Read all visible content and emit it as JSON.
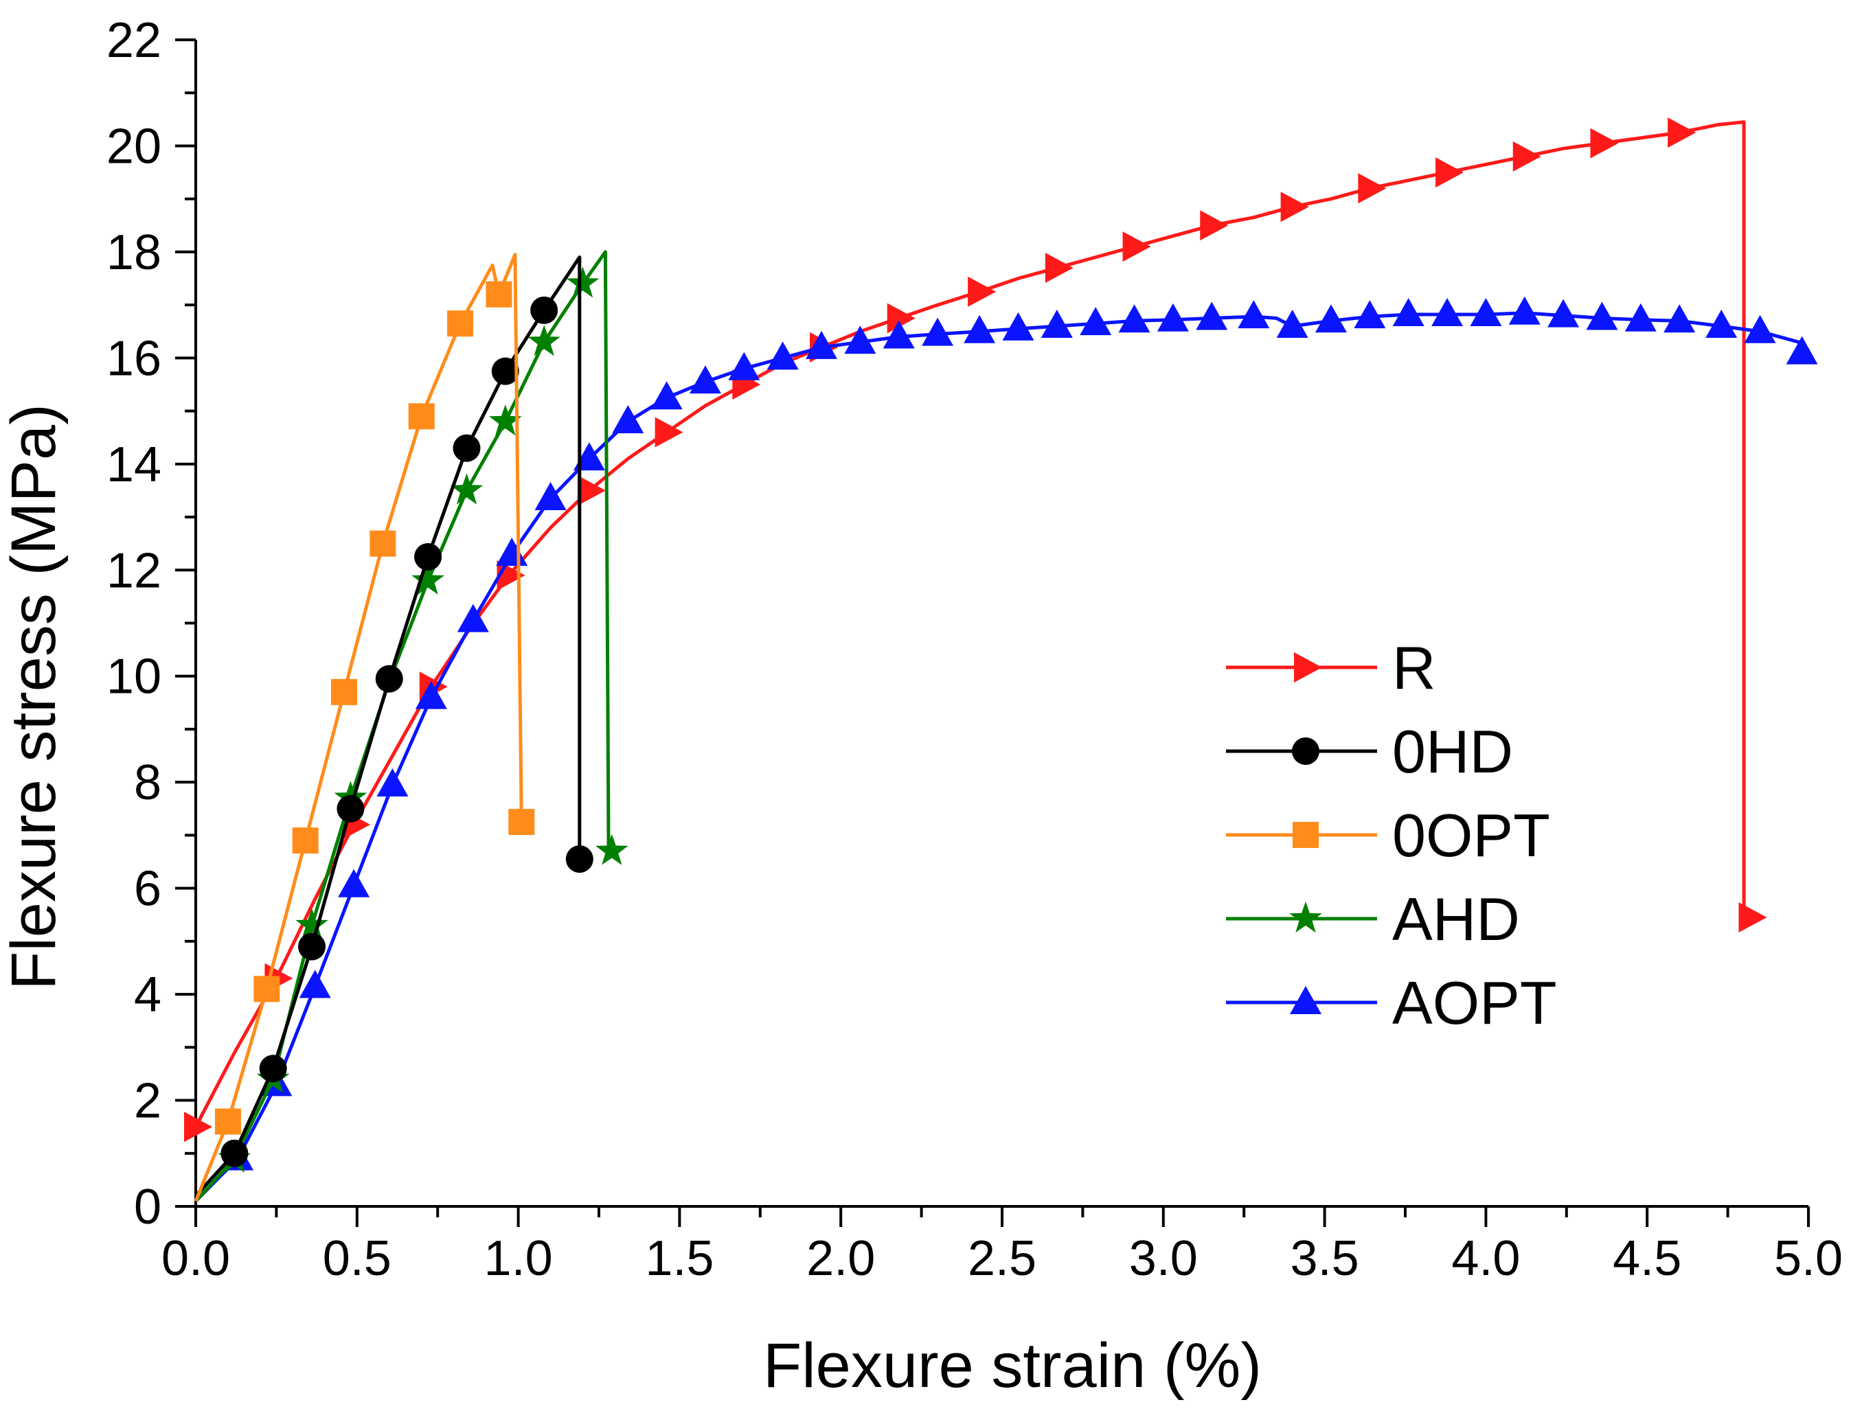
{
  "chart_data": {
    "type": "line",
    "title": "",
    "xlabel": "Flexure strain (%)",
    "ylabel": "Flexure stress (MPa)",
    "xlim": [
      0,
      5
    ],
    "ylim": [
      0,
      22
    ],
    "xticks": [
      "0.0",
      "0.5",
      "1.0",
      "1.5",
      "2.0",
      "2.5",
      "3.0",
      "3.5",
      "4.0",
      "4.5",
      "5.0"
    ],
    "yticks": [
      "0",
      "2",
      "4",
      "6",
      "8",
      "10",
      "12",
      "14",
      "16",
      "18",
      "20",
      "22"
    ],
    "legend_position": "center-right",
    "series": [
      {
        "name": "R",
        "color": "#ff1a1a",
        "marker": "triangle-right",
        "points": [
          [
            0.0,
            1.5
          ],
          [
            0.12,
            2.9
          ],
          [
            0.25,
            4.3
          ],
          [
            0.37,
            5.8
          ],
          [
            0.49,
            7.2
          ],
          [
            0.61,
            8.5
          ],
          [
            0.73,
            9.8
          ],
          [
            0.85,
            10.9
          ],
          [
            0.97,
            11.9
          ],
          [
            1.1,
            12.8
          ],
          [
            1.22,
            13.5
          ],
          [
            1.34,
            14.1
          ],
          [
            1.46,
            14.6
          ],
          [
            1.58,
            15.1
          ],
          [
            1.7,
            15.5
          ],
          [
            1.82,
            15.9
          ],
          [
            1.94,
            16.2
          ],
          [
            2.06,
            16.5
          ],
          [
            2.18,
            16.75
          ],
          [
            2.3,
            17.0
          ],
          [
            2.43,
            17.25
          ],
          [
            2.55,
            17.5
          ],
          [
            2.67,
            17.7
          ],
          [
            2.79,
            17.9
          ],
          [
            2.91,
            18.1
          ],
          [
            3.03,
            18.3
          ],
          [
            3.15,
            18.5
          ],
          [
            3.28,
            18.65
          ],
          [
            3.4,
            18.85
          ],
          [
            3.52,
            19.0
          ],
          [
            3.64,
            19.2
          ],
          [
            3.76,
            19.35
          ],
          [
            3.88,
            19.5
          ],
          [
            4.0,
            19.65
          ],
          [
            4.12,
            19.8
          ],
          [
            4.24,
            19.95
          ],
          [
            4.36,
            20.05
          ],
          [
            4.48,
            20.15
          ],
          [
            4.6,
            20.25
          ],
          [
            4.72,
            20.4
          ],
          [
            4.8,
            20.45
          ],
          [
            4.8,
            5.45
          ]
        ],
        "markers": [
          [
            0.0,
            1.5
          ],
          [
            0.25,
            4.3
          ],
          [
            0.49,
            7.2
          ],
          [
            0.73,
            9.8
          ],
          [
            0.97,
            11.9
          ],
          [
            1.22,
            13.5
          ],
          [
            1.46,
            14.6
          ],
          [
            1.7,
            15.5
          ],
          [
            1.94,
            16.2
          ],
          [
            2.18,
            16.75
          ],
          [
            2.43,
            17.25
          ],
          [
            2.67,
            17.7
          ],
          [
            2.91,
            18.1
          ],
          [
            3.15,
            18.5
          ],
          [
            3.4,
            18.85
          ],
          [
            3.64,
            19.2
          ],
          [
            3.88,
            19.5
          ],
          [
            4.12,
            19.8
          ],
          [
            4.36,
            20.05
          ],
          [
            4.6,
            20.25
          ],
          [
            4.82,
            5.45
          ]
        ]
      },
      {
        "name": "0HD",
        "color": "#000000",
        "marker": "circle",
        "points": [
          [
            0.0,
            0.2
          ],
          [
            0.12,
            1.0
          ],
          [
            0.24,
            2.6
          ],
          [
            0.36,
            4.9
          ],
          [
            0.48,
            7.5
          ],
          [
            0.6,
            9.95
          ],
          [
            0.72,
            12.25
          ],
          [
            0.84,
            14.3
          ],
          [
            0.96,
            15.75
          ],
          [
            1.08,
            16.9
          ],
          [
            1.19,
            17.9
          ],
          [
            1.19,
            6.55
          ]
        ],
        "markers": [
          [
            0.12,
            1.0
          ],
          [
            0.24,
            2.6
          ],
          [
            0.36,
            4.9
          ],
          [
            0.48,
            7.5
          ],
          [
            0.6,
            9.95
          ],
          [
            0.72,
            12.25
          ],
          [
            0.84,
            14.3
          ],
          [
            0.96,
            15.75
          ],
          [
            1.08,
            16.9
          ],
          [
            1.19,
            6.55
          ]
        ]
      },
      {
        "name": "0OPT",
        "color": "#ff8c1a",
        "marker": "square",
        "points": [
          [
            0.0,
            0.1
          ],
          [
            0.1,
            1.6
          ],
          [
            0.22,
            4.1
          ],
          [
            0.34,
            6.9
          ],
          [
            0.46,
            9.7
          ],
          [
            0.58,
            12.5
          ],
          [
            0.7,
            14.9
          ],
          [
            0.82,
            16.65
          ],
          [
            0.92,
            17.75
          ],
          [
            0.94,
            17.2
          ],
          [
            0.99,
            17.95
          ],
          [
            1.01,
            7.25
          ]
        ],
        "markers": [
          [
            0.1,
            1.6
          ],
          [
            0.22,
            4.1
          ],
          [
            0.34,
            6.9
          ],
          [
            0.46,
            9.7
          ],
          [
            0.58,
            12.5
          ],
          [
            0.7,
            14.9
          ],
          [
            0.82,
            16.65
          ],
          [
            0.94,
            17.2
          ],
          [
            1.01,
            7.25
          ]
        ]
      },
      {
        "name": "AHD",
        "color": "#008000",
        "marker": "star",
        "points": [
          [
            0.0,
            0.1
          ],
          [
            0.12,
            0.9
          ],
          [
            0.24,
            2.4
          ],
          [
            0.36,
            5.3
          ],
          [
            0.48,
            7.7
          ],
          [
            0.6,
            9.9
          ],
          [
            0.72,
            11.8
          ],
          [
            0.84,
            13.5
          ],
          [
            0.96,
            14.8
          ],
          [
            1.08,
            16.3
          ],
          [
            1.2,
            17.4
          ],
          [
            1.27,
            18.0
          ],
          [
            1.28,
            6.7
          ]
        ],
        "markers": [
          [
            0.12,
            0.9
          ],
          [
            0.24,
            2.4
          ],
          [
            0.36,
            5.3
          ],
          [
            0.48,
            7.7
          ],
          [
            0.72,
            11.8
          ],
          [
            0.84,
            13.5
          ],
          [
            0.96,
            14.8
          ],
          [
            1.08,
            16.3
          ],
          [
            1.2,
            17.4
          ],
          [
            1.29,
            6.7
          ]
        ]
      },
      {
        "name": "AOPT",
        "color": "#0a14ff",
        "marker": "triangle-up",
        "points": [
          [
            0.0,
            0.1
          ],
          [
            0.13,
            0.9
          ],
          [
            0.25,
            2.3
          ],
          [
            0.37,
            4.15
          ],
          [
            0.49,
            6.05
          ],
          [
            0.61,
            7.95
          ],
          [
            0.73,
            9.6
          ],
          [
            0.86,
            11.05
          ],
          [
            0.98,
            12.3
          ],
          [
            1.1,
            13.35
          ],
          [
            1.22,
            14.1
          ],
          [
            1.34,
            14.8
          ],
          [
            1.46,
            15.25
          ],
          [
            1.58,
            15.55
          ],
          [
            1.7,
            15.8
          ],
          [
            1.82,
            16.0
          ],
          [
            1.94,
            16.2
          ],
          [
            2.06,
            16.3
          ],
          [
            2.18,
            16.4
          ],
          [
            2.3,
            16.45
          ],
          [
            2.43,
            16.5
          ],
          [
            2.55,
            16.55
          ],
          [
            2.67,
            16.6
          ],
          [
            2.79,
            16.65
          ],
          [
            2.91,
            16.7
          ],
          [
            3.03,
            16.72
          ],
          [
            3.15,
            16.75
          ],
          [
            3.28,
            16.78
          ],
          [
            3.35,
            16.75
          ],
          [
            3.4,
            16.6
          ],
          [
            3.52,
            16.7
          ],
          [
            3.64,
            16.78
          ],
          [
            3.76,
            16.82
          ],
          [
            3.88,
            16.82
          ],
          [
            4.0,
            16.82
          ],
          [
            4.12,
            16.85
          ],
          [
            4.24,
            16.8
          ],
          [
            4.36,
            16.75
          ],
          [
            4.48,
            16.72
          ],
          [
            4.6,
            16.7
          ],
          [
            4.73,
            16.6
          ],
          [
            4.85,
            16.5
          ],
          [
            4.97,
            16.3
          ],
          [
            4.98,
            16.1
          ]
        ],
        "markers": [
          [
            0.13,
            0.9
          ],
          [
            0.25,
            2.3
          ],
          [
            0.37,
            4.15
          ],
          [
            0.49,
            6.05
          ],
          [
            0.61,
            7.95
          ],
          [
            0.73,
            9.6
          ],
          [
            0.86,
            11.05
          ],
          [
            0.98,
            12.3
          ],
          [
            1.1,
            13.35
          ],
          [
            1.22,
            14.1
          ],
          [
            1.34,
            14.8
          ],
          [
            1.46,
            15.25
          ],
          [
            1.58,
            15.55
          ],
          [
            1.7,
            15.8
          ],
          [
            1.82,
            16.0
          ],
          [
            1.94,
            16.2
          ],
          [
            2.06,
            16.3
          ],
          [
            2.18,
            16.4
          ],
          [
            2.3,
            16.45
          ],
          [
            2.43,
            16.5
          ],
          [
            2.55,
            16.55
          ],
          [
            2.67,
            16.6
          ],
          [
            2.79,
            16.65
          ],
          [
            2.91,
            16.7
          ],
          [
            3.03,
            16.72
          ],
          [
            3.15,
            16.75
          ],
          [
            3.28,
            16.78
          ],
          [
            3.4,
            16.6
          ],
          [
            3.52,
            16.7
          ],
          [
            3.64,
            16.78
          ],
          [
            3.76,
            16.82
          ],
          [
            3.88,
            16.82
          ],
          [
            4.0,
            16.82
          ],
          [
            4.12,
            16.85
          ],
          [
            4.24,
            16.8
          ],
          [
            4.36,
            16.75
          ],
          [
            4.48,
            16.72
          ],
          [
            4.6,
            16.7
          ],
          [
            4.73,
            16.6
          ],
          [
            4.85,
            16.5
          ],
          [
            4.98,
            16.1
          ]
        ]
      }
    ]
  }
}
